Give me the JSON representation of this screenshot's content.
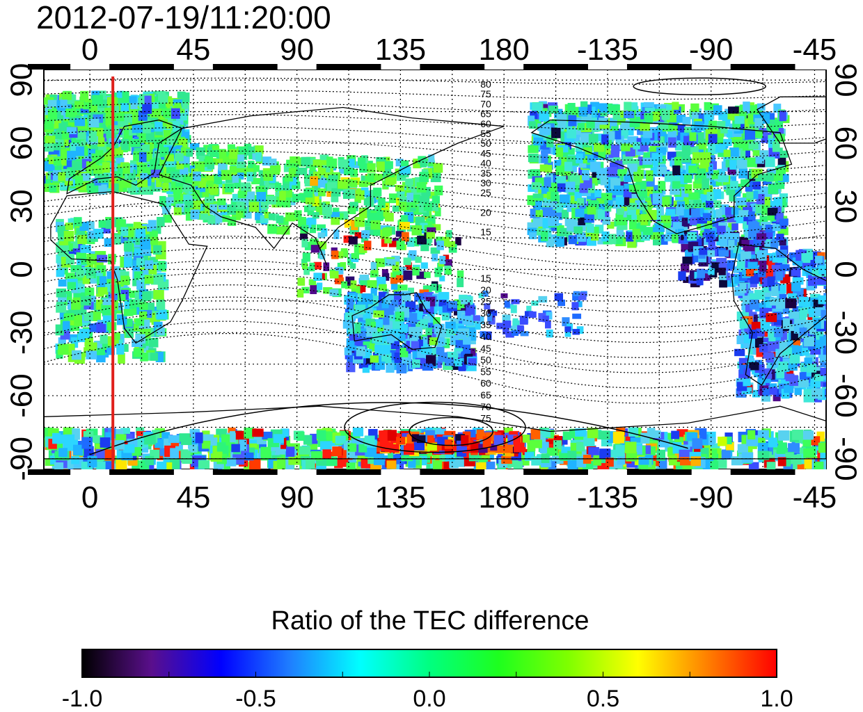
{
  "title": "2012-07-19/11:20:00",
  "map": {
    "lon_ticks_top": [
      "0",
      "45",
      "90",
      "135",
      "180",
      "-135",
      "-90",
      "-45"
    ],
    "lon_ticks_bottom": [
      "0",
      "45",
      "90",
      "135",
      "180",
      "-135",
      "-90",
      "-45"
    ],
    "lat_ticks_left": [
      "90",
      "60",
      "30",
      "0",
      "-30",
      "-60",
      "-90"
    ],
    "lat_ticks_right": [
      "90",
      "60",
      "30",
      "0",
      "-30",
      "-60",
      "-90"
    ],
    "contour_labels_upper": [
      "80",
      "75",
      "70",
      "65",
      "60",
      "55",
      "50",
      "45",
      "40",
      "35",
      "30",
      "25",
      "20",
      "15"
    ],
    "contour_labels_lower": [
      "15",
      "20",
      "25",
      "30",
      "35",
      "40",
      "45",
      "50",
      "55",
      "60",
      "65",
      "70",
      "75"
    ],
    "marker_longitude": 10,
    "marker_color": "#e0201b",
    "grid": true
  },
  "colorbar": {
    "title": "Ratio of the TEC difference",
    "tick_labels": [
      "-1.0",
      "-0.5",
      "0.0",
      "0.5",
      "1.0"
    ],
    "range": [
      -1.0,
      1.0
    ],
    "colors": [
      "#000000",
      "#5a0f8c",
      "#0000ff",
      "#1f7fff",
      "#00ffff",
      "#00ff80",
      "#1eff1e",
      "#7fff00",
      "#ffff00",
      "#ff8000",
      "#ff0000"
    ]
  }
}
